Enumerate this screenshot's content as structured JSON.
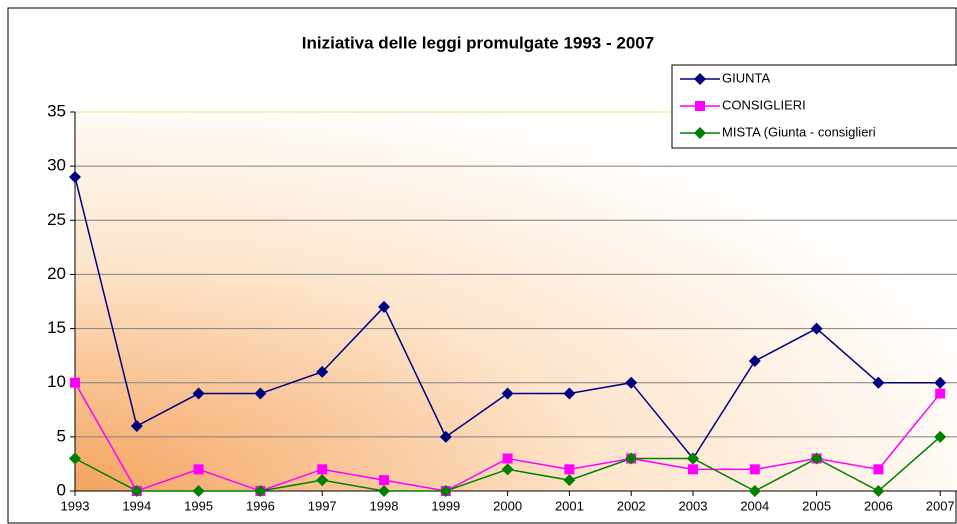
{
  "chart_data": {
    "type": "line",
    "title": "Iniziativa delle leggi promulgate 1993 - 2007",
    "categories": [
      "1993",
      "1994",
      "1995",
      "1996",
      "1997",
      "1998",
      "1999",
      "2000",
      "2001",
      "2002",
      "2003",
      "2004",
      "2005",
      "2006",
      "2007"
    ],
    "series": [
      {
        "name": "GIUNTA",
        "color": "#000080",
        "marker": "diamond",
        "values": [
          29,
          6,
          9,
          9,
          11,
          17,
          5,
          9,
          9,
          10,
          3,
          12,
          15,
          10,
          10
        ]
      },
      {
        "name": "CONSIGLIERI",
        "color": "#ff00ff",
        "marker": "square",
        "values": [
          10,
          0,
          2,
          0,
          2,
          1,
          0,
          3,
          2,
          3,
          2,
          2,
          3,
          2,
          9
        ]
      },
      {
        "name": "MISTA (Giunta - consiglieri",
        "color": "#008000",
        "marker": "diamond",
        "values": [
          3,
          0,
          0,
          0,
          1,
          0,
          0,
          2,
          1,
          3,
          3,
          0,
          3,
          0,
          5
        ]
      }
    ],
    "ylim": [
      0,
      35
    ],
    "yticks": [
      0,
      5,
      10,
      15,
      20,
      25,
      30,
      35
    ],
    "grid": true,
    "legend": "top-right"
  }
}
